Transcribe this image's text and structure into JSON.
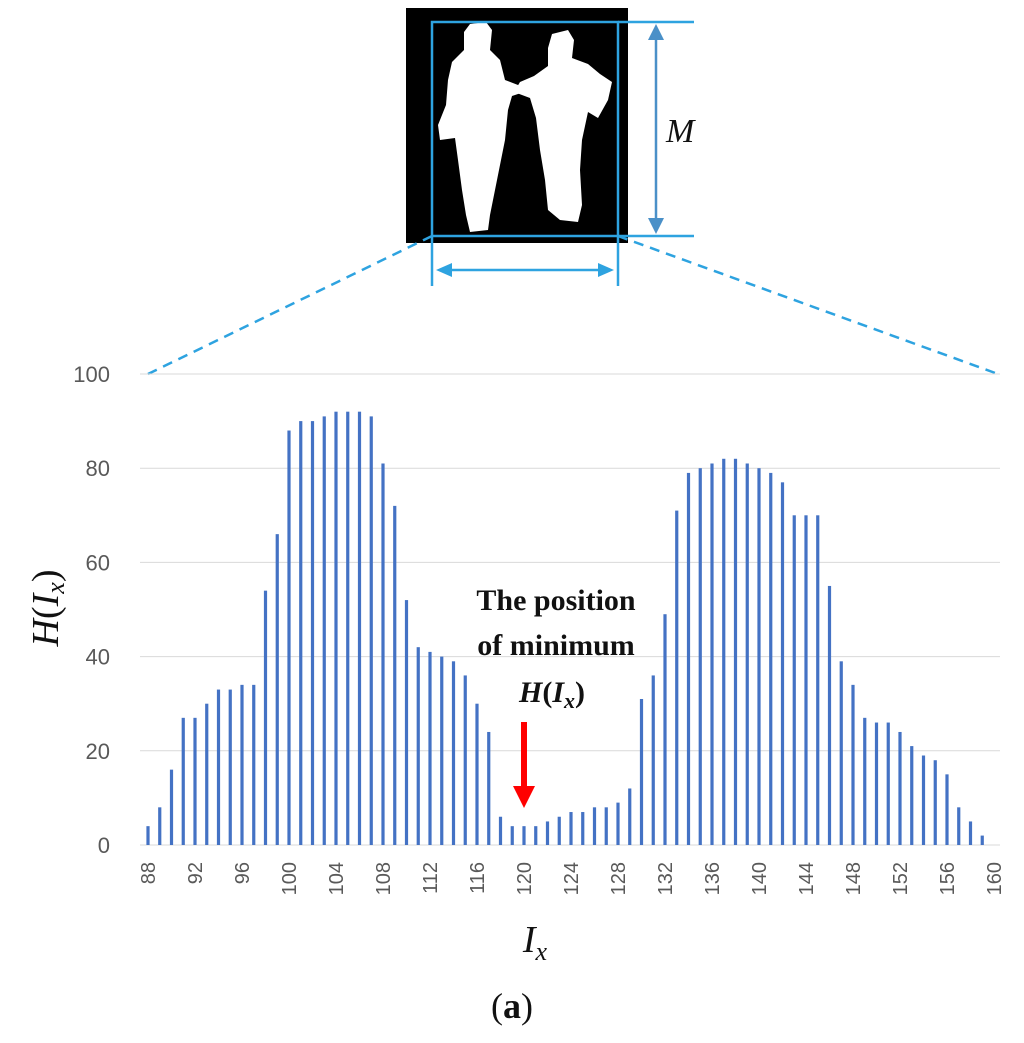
{
  "figure": {
    "panel_label": "(a)",
    "dimension_label": "M",
    "silhouette_icon": "two-person-silhouette-icon"
  },
  "colors": {
    "bar": "#4472c4",
    "bracket": "#2ea3e0",
    "dashed": "#2ea3e0",
    "arrow": "#ff0000",
    "grid": "#d9d9d9",
    "tick_text": "#595959"
  },
  "chart_data": {
    "type": "bar",
    "title": "",
    "xlabel": "I_x",
    "ylabel": "H(I_x)",
    "ylim": [
      0,
      100
    ],
    "yticks": [
      0,
      20,
      40,
      60,
      80,
      100
    ],
    "xticks": [
      88,
      92,
      96,
      100,
      104,
      108,
      112,
      116,
      120,
      124,
      128,
      132,
      136,
      140,
      144,
      148,
      152,
      156,
      160
    ],
    "grid": true,
    "legend": "none",
    "annotation": {
      "line1": "The position",
      "line2": "of minimum",
      "line3": "H(I_x)",
      "x": 120
    },
    "x": [
      88,
      89,
      90,
      91,
      92,
      93,
      94,
      95,
      96,
      97,
      98,
      99,
      100,
      101,
      102,
      103,
      104,
      105,
      106,
      107,
      108,
      109,
      110,
      111,
      112,
      113,
      114,
      115,
      116,
      117,
      118,
      119,
      120,
      121,
      122,
      123,
      124,
      125,
      126,
      127,
      128,
      129,
      130,
      131,
      132,
      133,
      134,
      135,
      136,
      137,
      138,
      139,
      140,
      141,
      142,
      143,
      144,
      145,
      146,
      147,
      148,
      149,
      150,
      151,
      152,
      153,
      154,
      155,
      156,
      157,
      158,
      159,
      160
    ],
    "values": [
      4,
      8,
      16,
      27,
      27,
      30,
      33,
      33,
      34,
      34,
      54,
      66,
      88,
      90,
      90,
      91,
      92,
      92,
      92,
      91,
      81,
      72,
      52,
      42,
      41,
      40,
      39,
      36,
      30,
      24,
      6,
      4,
      4,
      4,
      5,
      6,
      7,
      7,
      8,
      8,
      9,
      12,
      31,
      36,
      49,
      71,
      79,
      80,
      81,
      82,
      82,
      81,
      80,
      79,
      77,
      70,
      70,
      70,
      55,
      39,
      34,
      27,
      26,
      26,
      24,
      21,
      19,
      18,
      15,
      8,
      5,
      2,
      0
    ]
  }
}
